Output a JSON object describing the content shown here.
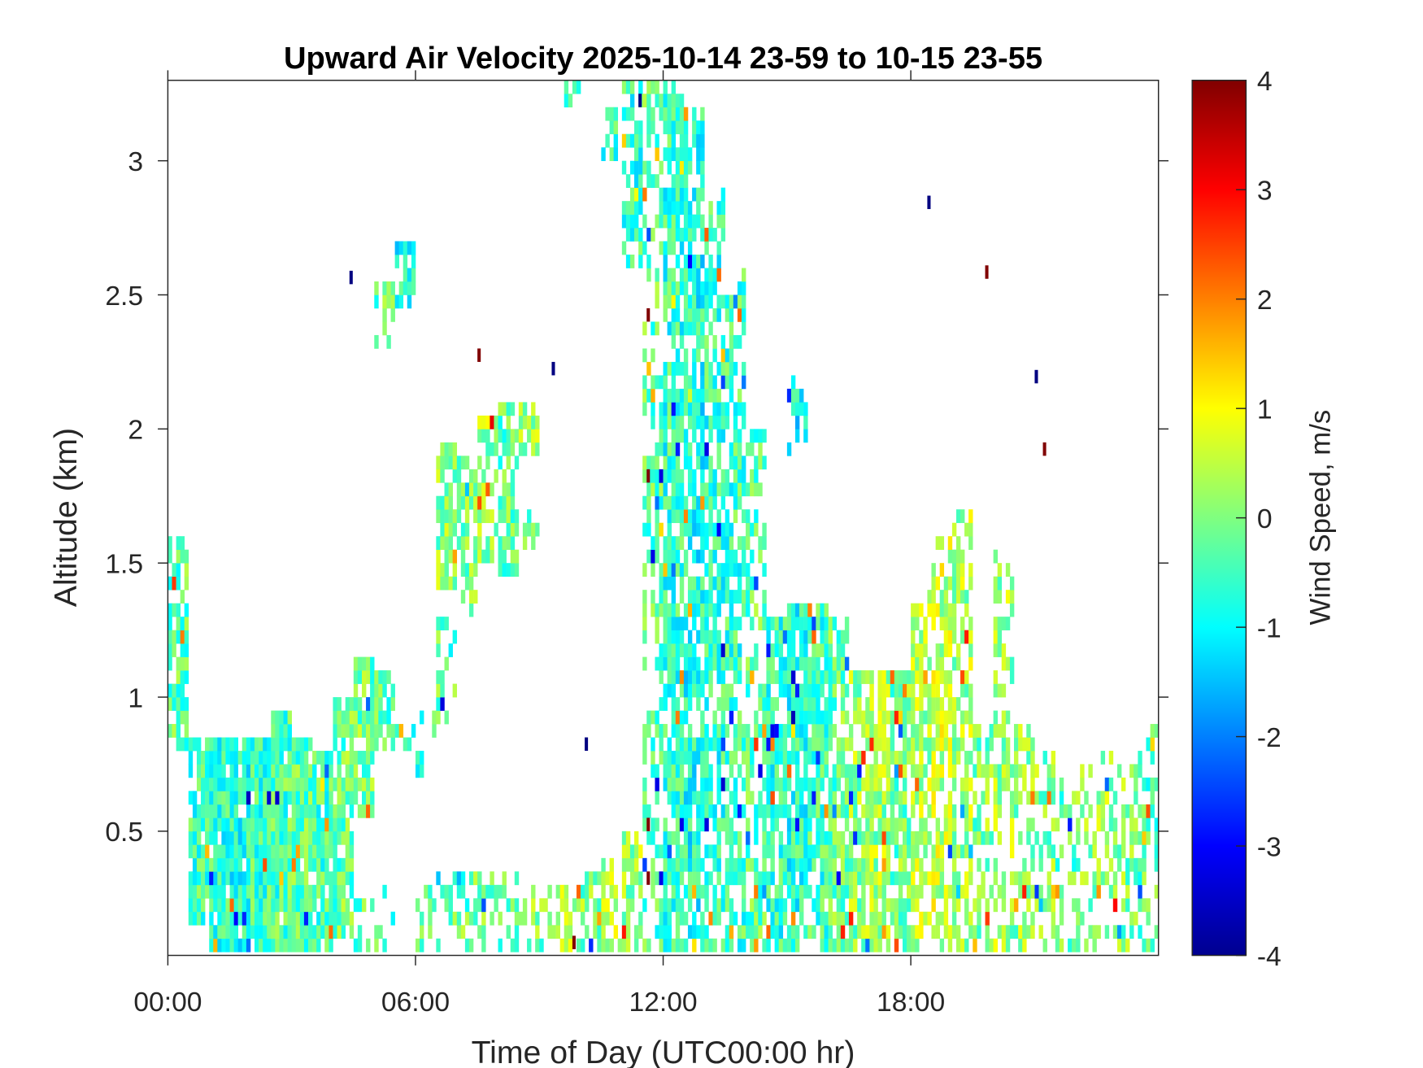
{
  "chart_data": {
    "type": "heatmap",
    "title": "Upward Air Velocity 2025-10-14 23-59 to 10-15 23-55",
    "xlabel": "Time of Day (UTC00:00 hr)",
    "ylabel": "Altitude (km)",
    "colorbar_label": "Wind Speed, m/s",
    "xlim": [
      0,
      24
    ],
    "ylim": [
      0.037,
      3.3
    ],
    "clim": [
      -4,
      4
    ],
    "colormap": "jet",
    "x_ticks": [
      {
        "value": 0,
        "label": "00:00"
      },
      {
        "value": 6,
        "label": "06:00"
      },
      {
        "value": 12,
        "label": "12:00"
      },
      {
        "value": 18,
        "label": "18:00"
      }
    ],
    "y_ticks": [
      {
        "value": 0.5,
        "label": "0.5"
      },
      {
        "value": 1,
        "label": "1"
      },
      {
        "value": 1.5,
        "label": "1.5"
      },
      {
        "value": 2,
        "label": "2"
      },
      {
        "value": 2.5,
        "label": "2.5"
      },
      {
        "value": 3,
        "label": "3"
      }
    ],
    "colorbar_ticks": [
      {
        "value": -4,
        "label": "-4"
      },
      {
        "value": -3,
        "label": "-3"
      },
      {
        "value": -2,
        "label": "-2"
      },
      {
        "value": -1,
        "label": "-1"
      },
      {
        "value": 0,
        "label": "0"
      },
      {
        "value": 1,
        "label": "1"
      },
      {
        "value": 2,
        "label": "2"
      },
      {
        "value": 3,
        "label": "3"
      },
      {
        "value": 4,
        "label": "4"
      }
    ],
    "segments_note": "per half-hour column: [alt_low_km, alt_high_km, mean_velocity_m_s, coverage_fraction]",
    "columns": [
      {
        "t": 0.0,
        "segments": [
          [
            0.8,
            1.6,
            -0.3,
            0.7
          ]
        ]
      },
      {
        "t": 0.5,
        "segments": [
          [
            0.15,
            0.85,
            -0.5,
            0.85
          ]
        ]
      },
      {
        "t": 1.0,
        "segments": [
          [
            0.05,
            0.85,
            -0.6,
            0.9
          ]
        ]
      },
      {
        "t": 1.5,
        "segments": [
          [
            0.05,
            0.85,
            -0.7,
            0.9
          ]
        ]
      },
      {
        "t": 2.0,
        "segments": [
          [
            0.05,
            0.85,
            -0.5,
            0.95
          ]
        ]
      },
      {
        "t": 2.5,
        "segments": [
          [
            0.05,
            0.95,
            -0.4,
            0.95
          ]
        ]
      },
      {
        "t": 3.0,
        "segments": [
          [
            0.05,
            0.85,
            -0.3,
            0.95
          ]
        ]
      },
      {
        "t": 3.5,
        "segments": [
          [
            0.05,
            0.8,
            -0.4,
            0.9
          ]
        ]
      },
      {
        "t": 4.0,
        "segments": [
          [
            0.1,
            1.0,
            -0.2,
            0.85
          ]
        ]
      },
      {
        "t": 4.5,
        "segments": [
          [
            0.55,
            1.15,
            -0.1,
            0.85
          ],
          [
            0.05,
            0.35,
            -0.2,
            0.3
          ]
        ]
      },
      {
        "t": 5.0,
        "segments": [
          [
            0.8,
            1.1,
            -0.3,
            0.7
          ],
          [
            2.3,
            2.55,
            -0.3,
            0.7
          ],
          [
            0.05,
            0.3,
            -0.3,
            0.2
          ]
        ]
      },
      {
        "t": 5.5,
        "segments": [
          [
            2.45,
            2.7,
            -0.8,
            0.8
          ],
          [
            0.8,
            0.9,
            -0.5,
            0.5
          ]
        ]
      },
      {
        "t": 6.0,
        "segments": [
          [
            0.7,
            1.0,
            -0.5,
            0.3
          ],
          [
            0.05,
            0.3,
            -0.2,
            0.3
          ]
        ]
      },
      {
        "t": 6.5,
        "segments": [
          [
            1.4,
            1.95,
            0.1,
            0.75
          ],
          [
            0.9,
            1.3,
            -0.3,
            0.4
          ],
          [
            0.05,
            0.35,
            0.0,
            0.5
          ]
        ]
      },
      {
        "t": 7.0,
        "segments": [
          [
            1.3,
            1.9,
            0.0,
            0.6
          ],
          [
            0.05,
            0.35,
            -0.2,
            0.5
          ]
        ]
      },
      {
        "t": 7.5,
        "segments": [
          [
            1.5,
            2.05,
            0.2,
            0.7
          ],
          [
            0.05,
            0.35,
            0.0,
            0.5
          ]
        ]
      },
      {
        "t": 8.0,
        "segments": [
          [
            1.45,
            2.1,
            -0.2,
            0.7
          ],
          [
            0.05,
            0.35,
            -0.1,
            0.4
          ]
        ]
      },
      {
        "t": 8.5,
        "segments": [
          [
            1.9,
            2.1,
            0.2,
            0.85
          ],
          [
            1.55,
            1.7,
            -0.3,
            0.4
          ],
          [
            0.05,
            0.3,
            0.0,
            0.4
          ]
        ]
      },
      {
        "t": 9.0,
        "segments": [
          [
            0.05,
            0.3,
            -0.1,
            0.5
          ]
        ]
      },
      {
        "t": 9.5,
        "segments": [
          [
            0.05,
            0.3,
            0.5,
            0.6
          ],
          [
            3.2,
            3.3,
            -0.5,
            0.5
          ]
        ]
      },
      {
        "t": 10.0,
        "segments": [
          [
            0.05,
            0.35,
            0.0,
            0.5
          ]
        ]
      },
      {
        "t": 10.5,
        "segments": [
          [
            0.05,
            0.4,
            0.3,
            0.6
          ],
          [
            3.0,
            3.2,
            -0.5,
            0.5
          ]
        ]
      },
      {
        "t": 11.0,
        "segments": [
          [
            0.05,
            0.5,
            0.2,
            0.7
          ],
          [
            2.6,
            3.3,
            -0.6,
            0.6
          ]
        ]
      },
      {
        "t": 11.5,
        "segments": [
          [
            0.05,
            3.3,
            -0.3,
            0.45
          ]
        ]
      },
      {
        "t": 12.0,
        "segments": [
          [
            0.05,
            3.3,
            -0.6,
            0.75
          ]
        ]
      },
      {
        "t": 12.5,
        "segments": [
          [
            0.05,
            3.2,
            -0.8,
            0.75
          ]
        ]
      },
      {
        "t": 13.0,
        "segments": [
          [
            0.05,
            2.9,
            -0.6,
            0.7
          ]
        ]
      },
      {
        "t": 13.5,
        "segments": [
          [
            0.05,
            2.6,
            -0.5,
            0.65
          ]
        ]
      },
      {
        "t": 14.0,
        "segments": [
          [
            0.05,
            2.0,
            -0.3,
            0.6
          ]
        ]
      },
      {
        "t": 14.5,
        "segments": [
          [
            0.05,
            1.3,
            -0.6,
            0.8
          ]
        ]
      },
      {
        "t": 15.0,
        "segments": [
          [
            0.05,
            1.35,
            -0.7,
            0.8
          ],
          [
            1.9,
            2.2,
            -1.0,
            0.4
          ]
        ]
      },
      {
        "t": 15.5,
        "segments": [
          [
            0.05,
            1.35,
            -0.5,
            0.8
          ]
        ]
      },
      {
        "t": 16.0,
        "segments": [
          [
            0.05,
            1.3,
            -0.2,
            0.75
          ]
        ]
      },
      {
        "t": 16.5,
        "segments": [
          [
            0.05,
            1.1,
            0.1,
            0.8
          ]
        ]
      },
      {
        "t": 17.0,
        "segments": [
          [
            0.05,
            1.1,
            0.2,
            0.8
          ]
        ]
      },
      {
        "t": 17.5,
        "segments": [
          [
            0.05,
            1.1,
            -0.1,
            0.75
          ]
        ]
      },
      {
        "t": 18.0,
        "segments": [
          [
            0.05,
            1.4,
            0.3,
            0.7
          ]
        ]
      },
      {
        "t": 18.5,
        "segments": [
          [
            0.05,
            1.6,
            0.5,
            0.75
          ]
        ]
      },
      {
        "t": 19.0,
        "segments": [
          [
            0.05,
            1.7,
            0.3,
            0.65
          ]
        ]
      },
      {
        "t": 19.5,
        "segments": [
          [
            0.05,
            0.9,
            0.0,
            0.55
          ]
        ]
      },
      {
        "t": 20.0,
        "segments": [
          [
            0.05,
            1.55,
            0.2,
            0.55
          ]
        ]
      },
      {
        "t": 20.5,
        "segments": [
          [
            0.05,
            0.9,
            0.1,
            0.5
          ]
        ]
      },
      {
        "t": 21.0,
        "segments": [
          [
            0.05,
            0.8,
            0.0,
            0.45
          ]
        ]
      },
      {
        "t": 21.5,
        "segments": [
          [
            0.05,
            0.7,
            -0.2,
            0.45
          ]
        ]
      },
      {
        "t": 22.0,
        "segments": [
          [
            0.05,
            0.75,
            0.0,
            0.45
          ]
        ]
      },
      {
        "t": 22.5,
        "segments": [
          [
            0.05,
            0.8,
            0.2,
            0.4
          ]
        ]
      },
      {
        "t": 23.0,
        "segments": [
          [
            0.05,
            0.75,
            0.0,
            0.45
          ]
        ]
      },
      {
        "t": 23.5,
        "segments": [
          [
            0.05,
            0.9,
            -0.3,
            0.5
          ]
        ]
      }
    ],
    "outliers": [
      [
        4.4,
        2.54,
        -4
      ],
      [
        7.5,
        2.25,
        4
      ],
      [
        9.3,
        2.2,
        -4
      ],
      [
        10.1,
        0.8,
        -4
      ],
      [
        11.4,
        3.2,
        -4
      ],
      [
        11.6,
        2.4,
        4
      ],
      [
        11.6,
        1.8,
        4
      ],
      [
        11.6,
        0.5,
        4
      ],
      [
        11.6,
        0.3,
        4
      ],
      [
        18.4,
        2.82,
        -4
      ],
      [
        19.8,
        2.56,
        4
      ],
      [
        21.0,
        2.17,
        -4
      ],
      [
        21.2,
        1.9,
        4
      ],
      [
        9.8,
        0.06,
        4
      ]
    ]
  }
}
